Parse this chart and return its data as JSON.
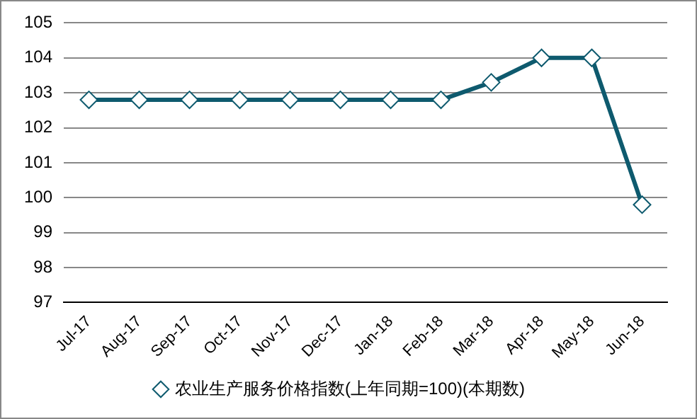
{
  "chart_data": {
    "type": "line",
    "categories": [
      "Jul-17",
      "Aug-17",
      "Sep-17",
      "Oct-17",
      "Nov-17",
      "Dec-17",
      "Jan-18",
      "Feb-18",
      "Mar-18",
      "Apr-18",
      "May-18",
      "Jun-18"
    ],
    "series": [
      {
        "name": "农业生产服务价格指数(上年同期=100)(本期数)",
        "color": "#0e5a6e",
        "values": [
          102.8,
          102.8,
          102.8,
          102.8,
          102.8,
          102.8,
          102.8,
          102.8,
          103.3,
          104,
          104,
          99.8
        ]
      }
    ],
    "ylim": [
      97,
      105
    ],
    "yticks": [
      97,
      98,
      99,
      100,
      101,
      102,
      103,
      104,
      105
    ],
    "grid": "y",
    "legend": "bottom",
    "marker": "diamond",
    "line_style": "solid"
  }
}
